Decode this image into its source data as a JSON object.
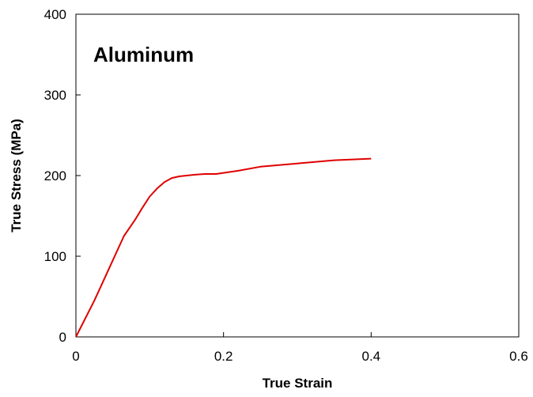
{
  "chart_data": {
    "type": "line",
    "title": "",
    "annotation": "Aluminum",
    "xlabel": "True Strain",
    "ylabel": "True Stress (MPa)",
    "xlim": [
      0,
      0.6
    ],
    "ylim": [
      0,
      400
    ],
    "xticks": [
      0,
      0.2,
      0.4,
      0.6
    ],
    "xtick_labels": [
      "0",
      "0.2",
      "0.4",
      "0.6"
    ],
    "yticks": [
      0,
      100,
      200,
      300,
      400
    ],
    "ytick_labels": [
      "0",
      "100",
      "200",
      "300",
      "400"
    ],
    "grid": false,
    "legend": "none",
    "series": [
      {
        "color": "#e00000",
        "x": [
          0,
          0.025,
          0.05,
          0.065,
          0.08,
          0.09,
          0.1,
          0.11,
          0.12,
          0.13,
          0.14,
          0.16,
          0.175,
          0.19,
          0.22,
          0.25,
          0.3,
          0.35,
          0.4
        ],
        "y": [
          0,
          45,
          95,
          125,
          145,
          160,
          174,
          184,
          192,
          197,
          199,
          201,
          202,
          202,
          206,
          211,
          215,
          219,
          221
        ]
      }
    ]
  }
}
